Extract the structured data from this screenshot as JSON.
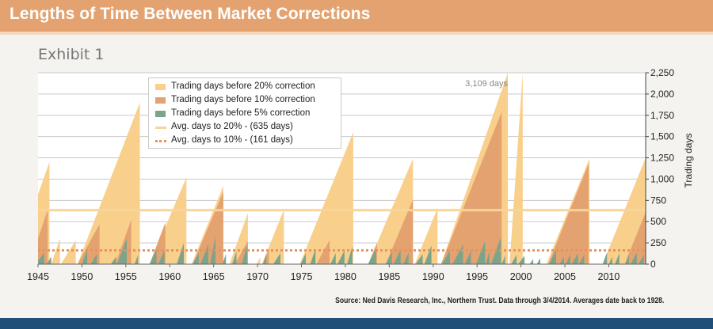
{
  "header": {
    "title": "Lengths of Time Between Market Corrections",
    "exhibit": "Exhibit 1"
  },
  "source": "Source: Ned Davis Research, Inc., Northern Trust. Data through 3/4/2014. Averages date back to 1928.",
  "colors": {
    "c20": "#f9cf8c",
    "c10": "#e3a26f",
    "c5": "#7aa48c",
    "avg20": "#f7d59a",
    "avg10": "#e8935f",
    "grid": "#c8c8c8",
    "banner": "#e3a26f",
    "footer": "#1f4e79"
  },
  "chart_data": {
    "type": "area",
    "ylabel": "Trading days",
    "xlim": [
      1945,
      2014.2
    ],
    "ylim": [
      0,
      2250
    ],
    "x_ticks": [
      1945,
      1950,
      1955,
      1960,
      1965,
      1970,
      1975,
      1980,
      1985,
      1990,
      1995,
      2000,
      2005,
      2010
    ],
    "y_ticks": [
      "0",
      "250",
      "500",
      "750",
      "1,000",
      "1,250",
      "1,500",
      "1,750",
      "2,000",
      "2,250"
    ],
    "y_tick_values": [
      0,
      250,
      500,
      750,
      1000,
      1250,
      1500,
      1750,
      2000,
      2250
    ],
    "grid": true,
    "legend_position": "top-left",
    "legend": [
      "Trading days before 20% correction",
      "Trading days before 10% correction",
      "Trading days before 5% correction",
      "Avg. days to 20% - (635 days)",
      "Avg. days to 10% - (161 days)"
    ],
    "annotations": [
      {
        "x": 1998.6,
        "y": 2130,
        "text": "3,109 days"
      }
    ],
    "averages": {
      "days_to_20": 635,
      "days_to_10": 161
    },
    "series": [
      {
        "name": "Trading days before 20% correction",
        "cycles": [
          [
            1945.0,
            1946.3,
            820,
            1200
          ],
          [
            1946.5,
            1947.5,
            0,
            300
          ],
          [
            1947.6,
            1949.3,
            0,
            280
          ],
          [
            1949.5,
            1956.6,
            0,
            1900
          ],
          [
            1957.7,
            1961.9,
            0,
            1020
          ],
          [
            1962.5,
            1966.1,
            0,
            920
          ],
          [
            1966.8,
            1968.9,
            0,
            600
          ],
          [
            1969.9,
            1970.3,
            0,
            80
          ],
          [
            1970.5,
            1973.0,
            0,
            640
          ],
          [
            1974.8,
            1980.9,
            0,
            1550
          ],
          [
            1982.6,
            1987.7,
            0,
            1240
          ],
          [
            1987.9,
            1990.5,
            0,
            660
          ],
          [
            1990.9,
            1998.5,
            0,
            2250
          ],
          [
            1998.7,
            2000.2,
            0,
            2250
          ],
          [
            2002.9,
            2007.8,
            0,
            1240
          ],
          [
            2009.3,
            2014.2,
            0,
            1250
          ]
        ]
      },
      {
        "name": "Trading days before 10% correction",
        "cycles": [
          [
            1945.0,
            1946.1,
            300,
            640
          ],
          [
            1949.5,
            1952.0,
            0,
            470
          ],
          [
            1953.8,
            1955.6,
            0,
            520
          ],
          [
            1957.7,
            1959.5,
            0,
            490
          ],
          [
            1962.6,
            1966.1,
            0,
            850
          ],
          [
            1967.4,
            1968.9,
            0,
            270
          ],
          [
            1970.6,
            1971.3,
            0,
            180
          ],
          [
            1976.7,
            1978.2,
            0,
            280
          ],
          [
            1982.6,
            1983.6,
            0,
            250
          ],
          [
            1984.6,
            1987.7,
            0,
            760
          ],
          [
            1990.9,
            1997.8,
            0,
            1790
          ],
          [
            2003.1,
            2007.7,
            0,
            1180
          ],
          [
            2011.8,
            2014.2,
            0,
            610
          ]
        ]
      },
      {
        "name": "Trading days before 5% correction",
        "cycles": [
          [
            1945.0,
            1945.7,
            40,
            130
          ],
          [
            1946.0,
            1946.5,
            0,
            90
          ],
          [
            1950.0,
            1950.6,
            0,
            170
          ],
          [
            1951.0,
            1951.7,
            0,
            120
          ],
          [
            1953.3,
            1953.9,
            0,
            90
          ],
          [
            1954.0,
            1955.1,
            0,
            300
          ],
          [
            1956.0,
            1956.4,
            0,
            110
          ],
          [
            1957.7,
            1958.5,
            0,
            170
          ],
          [
            1958.7,
            1959.4,
            0,
            160
          ],
          [
            1960.8,
            1961.6,
            0,
            250
          ],
          [
            1962.6,
            1963.3,
            0,
            130
          ],
          [
            1963.5,
            1964.4,
            0,
            230
          ],
          [
            1964.6,
            1965.2,
            0,
            320
          ],
          [
            1966.0,
            1966.4,
            0,
            120
          ],
          [
            1967.1,
            1967.6,
            0,
            150
          ],
          [
            1968.2,
            1968.8,
            0,
            220
          ],
          [
            1970.6,
            1971.0,
            0,
            120
          ],
          [
            1971.8,
            1972.6,
            0,
            130
          ],
          [
            1974.9,
            1975.5,
            0,
            130
          ],
          [
            1976.0,
            1976.6,
            0,
            180
          ],
          [
            1978.3,
            1978.9,
            0,
            130
          ],
          [
            1979.1,
            1979.9,
            0,
            160
          ],
          [
            1980.2,
            1980.8,
            0,
            210
          ],
          [
            1982.6,
            1983.5,
            0,
            190
          ],
          [
            1984.6,
            1985.3,
            0,
            150
          ],
          [
            1985.5,
            1986.3,
            0,
            170
          ],
          [
            1986.6,
            1987.2,
            0,
            130
          ],
          [
            1988.0,
            1988.8,
            0,
            120
          ],
          [
            1989.0,
            1989.8,
            0,
            220
          ],
          [
            1991.0,
            1991.9,
            0,
            160
          ],
          [
            1992.2,
            1993.4,
            0,
            230
          ],
          [
            1993.6,
            1994.3,
            0,
            160
          ],
          [
            1994.9,
            1995.9,
            0,
            270
          ],
          [
            1996.0,
            1996.4,
            0,
            150
          ],
          [
            1996.6,
            1997.7,
            0,
            310
          ],
          [
            1997.8,
            1998.2,
            0,
            100
          ],
          [
            1998.9,
            1999.5,
            0,
            110
          ],
          [
            1999.7,
            2000.4,
            0,
            100
          ],
          [
            2001.0,
            2001.4,
            0,
            60
          ],
          [
            2001.8,
            2002.2,
            0,
            70
          ],
          [
            2003.2,
            2004.0,
            0,
            170
          ],
          [
            2004.4,
            2004.9,
            0,
            90
          ],
          [
            2005.1,
            2005.6,
            0,
            110
          ],
          [
            2005.8,
            2006.5,
            0,
            130
          ],
          [
            2006.6,
            2007.2,
            0,
            110
          ],
          [
            2009.3,
            2009.8,
            0,
            140
          ],
          [
            2010.0,
            2010.4,
            0,
            90
          ],
          [
            2010.7,
            2011.2,
            0,
            130
          ],
          [
            2011.9,
            2012.3,
            0,
            120
          ],
          [
            2012.5,
            2013.2,
            0,
            140
          ],
          [
            2013.4,
            2014.0,
            0,
            110
          ]
        ]
      }
    ]
  }
}
